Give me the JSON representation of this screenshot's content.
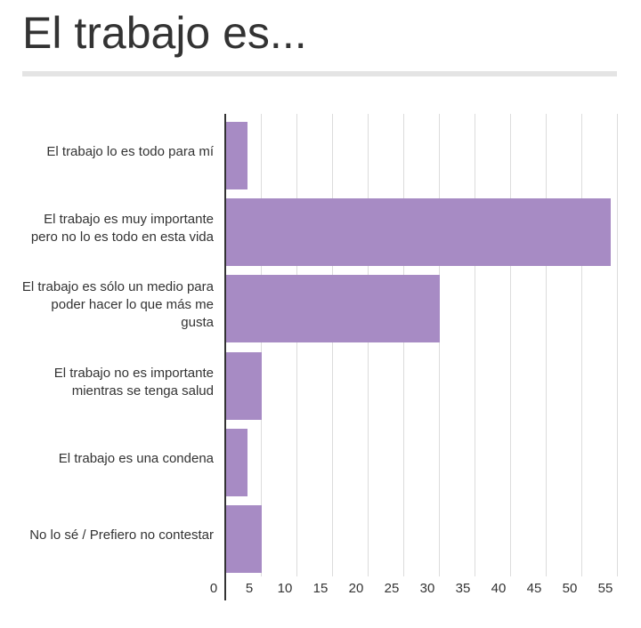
{
  "chart_data": {
    "type": "bar",
    "orientation": "horizontal",
    "title": "El trabajo es...",
    "categories": [
      "El trabajo lo es todo para mí",
      "El trabajo es muy importante pero no lo es todo en esta vida",
      "El trabajo es sólo un medio para poder hacer lo que más me gusta",
      "El trabajo no es importante mientras se tenga salud",
      "El trabajo es una condena",
      "No lo sé / Prefiero no contestar"
    ],
    "values": [
      3,
      54,
      30,
      5,
      3,
      5
    ],
    "color": "#a78bc4",
    "xlim": [
      0,
      55
    ],
    "xticks": [
      0,
      5,
      10,
      15,
      20,
      25,
      30,
      35,
      40,
      45,
      50,
      55
    ],
    "grid": true
  }
}
